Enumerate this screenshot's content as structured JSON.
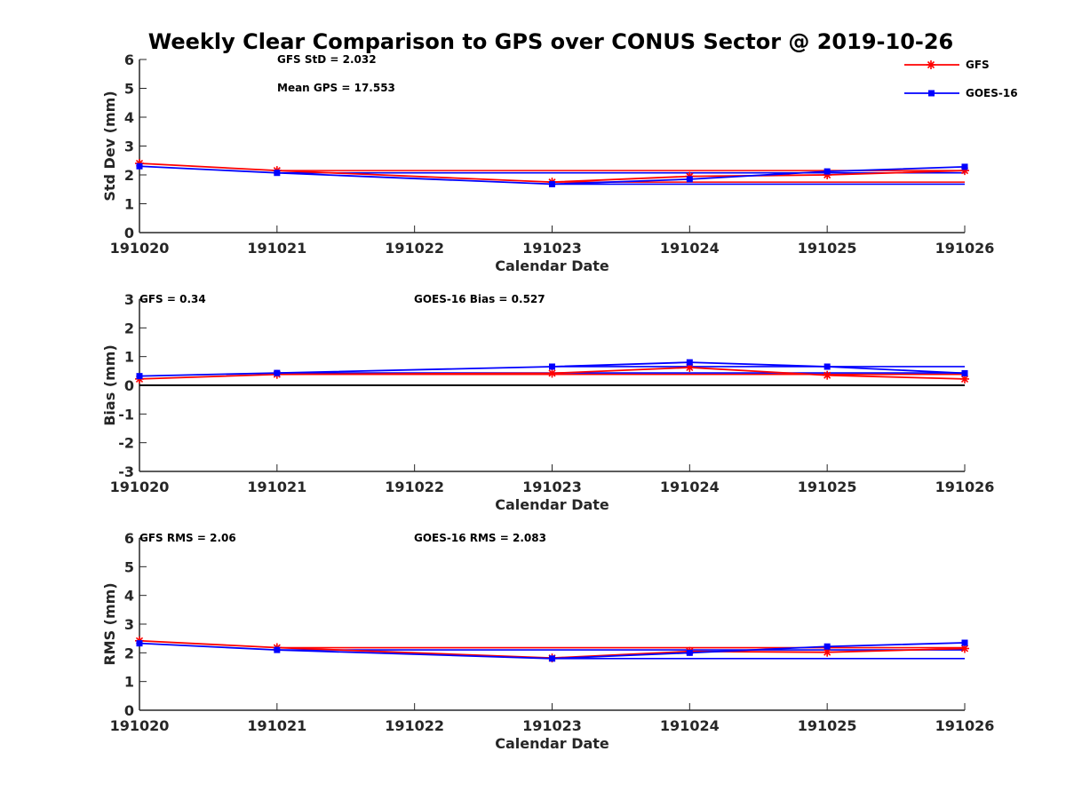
{
  "figure": {
    "title": "Weekly Clear Comparison to GPS over CONUS Sector @ 2019-10-26"
  },
  "colors": {
    "gfs": "#ff0000",
    "goes": "#0000ff",
    "zero_line": "#000000",
    "axes": "#262626"
  },
  "legend": {
    "placement": "top-right",
    "items": [
      {
        "label": "GFS",
        "marker": "asterisk",
        "color": "#ff0000"
      },
      {
        "label": "GOES-16",
        "marker": "square",
        "color": "#0000ff"
      }
    ]
  },
  "chart_data": [
    {
      "type": "line",
      "xlabel": "Calendar Date",
      "ylabel": "Std Dev (mm)",
      "ylim": [
        0,
        6
      ],
      "yticks": [
        "0",
        "1",
        "2",
        "3",
        "4",
        "5",
        "6"
      ],
      "x": [
        191020,
        191021,
        191023,
        191024,
        191025,
        191026
      ],
      "xticks": [
        "191020",
        "191021",
        "191022",
        "191023",
        "191024",
        "191025",
        "191026"
      ],
      "annotations": [
        "GFS StD = 2.032",
        "Mean GPS = 17.553"
      ],
      "series": [
        {
          "name": "GFS",
          "values": [
            2.4,
            2.15,
            1.75,
            1.95,
            2.0,
            2.15
          ],
          "mean": 2.032
        },
        {
          "name": "GOES-16",
          "values": [
            2.3,
            2.07,
            1.68,
            1.85,
            2.12,
            2.28
          ]
        }
      ],
      "reference_lines": [
        {
          "series": "GFS",
          "value": 2.15,
          "from": 191021,
          "to": 191026
        },
        {
          "series": "GOES-16",
          "value": 2.07,
          "from": 191021,
          "to": 191026
        },
        {
          "series": "GFS",
          "value": 1.75,
          "from": 191023,
          "to": 191026
        },
        {
          "series": "GOES-16",
          "value": 1.68,
          "from": 191023,
          "to": 191026
        }
      ]
    },
    {
      "type": "line",
      "xlabel": "Calendar Date",
      "ylabel": "Bias (mm)",
      "ylim": [
        -3,
        3
      ],
      "yticks": [
        "-3",
        "-2",
        "-1",
        "0",
        "1",
        "2",
        "3"
      ],
      "x": [
        191020,
        191021,
        191023,
        191024,
        191025,
        191026
      ],
      "xticks": [
        "191020",
        "191021",
        "191022",
        "191023",
        "191024",
        "191025",
        "191026"
      ],
      "annotations": [
        "GFS = 0.34",
        "GOES-16 Bias  = 0.527"
      ],
      "series": [
        {
          "name": "GFS",
          "values": [
            0.22,
            0.38,
            0.42,
            0.62,
            0.35,
            0.22
          ],
          "mean": 0.34
        },
        {
          "name": "GOES-16",
          "values": [
            0.32,
            0.43,
            0.65,
            0.8,
            0.65,
            0.42
          ],
          "mean": 0.527
        }
      ],
      "reference_lines": [
        {
          "series": "zero",
          "value": 0,
          "from": 191020,
          "to": 191026
        },
        {
          "series": "GFS",
          "value": 0.38,
          "from": 191021,
          "to": 191026
        },
        {
          "series": "GOES-16",
          "value": 0.43,
          "from": 191021,
          "to": 191026
        },
        {
          "series": "GOES-16",
          "value": 0.65,
          "from": 191023,
          "to": 191026
        }
      ]
    },
    {
      "type": "line",
      "xlabel": "Calendar Date",
      "ylabel": "RMS (mm)",
      "ylim": [
        0,
        6
      ],
      "yticks": [
        "0",
        "1",
        "2",
        "3",
        "4",
        "5",
        "6"
      ],
      "x": [
        191020,
        191021,
        191023,
        191024,
        191025,
        191026
      ],
      "xticks": [
        "191020",
        "191021",
        "191022",
        "191023",
        "191024",
        "191025",
        "191026"
      ],
      "annotations": [
        "GFS RMS = 2.06",
        "GOES-16 RMS = 2.083"
      ],
      "series": [
        {
          "name": "GFS",
          "values": [
            2.42,
            2.18,
            1.82,
            2.05,
            2.02,
            2.15
          ],
          "mean": 2.06
        },
        {
          "name": "GOES-16",
          "values": [
            2.33,
            2.1,
            1.8,
            2.0,
            2.22,
            2.35
          ],
          "mean": 2.083
        }
      ],
      "reference_lines": [
        {
          "series": "GFS",
          "value": 2.18,
          "from": 191021,
          "to": 191026
        },
        {
          "series": "GOES-16",
          "value": 2.1,
          "from": 191021,
          "to": 191026
        },
        {
          "series": "GOES-16",
          "value": 1.8,
          "from": 191023,
          "to": 191026
        }
      ]
    }
  ]
}
